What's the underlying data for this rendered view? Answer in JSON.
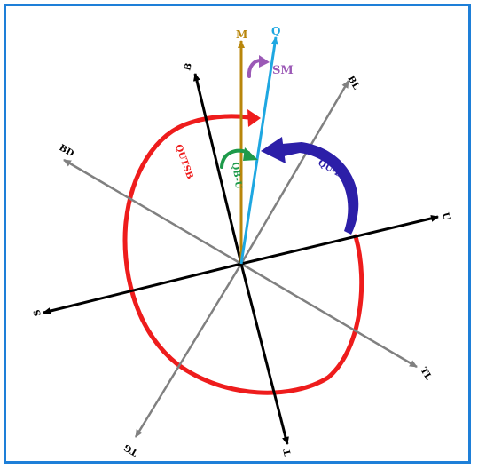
{
  "axes": [
    {
      "id": "M",
      "label": "M",
      "color": "#b8860b"
    },
    {
      "id": "Q",
      "label": "Q",
      "color": "#1ea7e1"
    },
    {
      "id": "B",
      "label": "B",
      "color": "#000000"
    },
    {
      "id": "BL",
      "label": "BL",
      "color": "#808080"
    },
    {
      "id": "BD",
      "label": "BD",
      "color": "#808080"
    },
    {
      "id": "U",
      "label": "U",
      "color": "#000000"
    },
    {
      "id": "S",
      "label": "S",
      "color": "#000000"
    },
    {
      "id": "TL",
      "label": "TL",
      "color": "#808080"
    },
    {
      "id": "TG",
      "label": "TG",
      "color": "#808080"
    },
    {
      "id": "T",
      "label": "T",
      "color": "#000000"
    }
  ],
  "rotations": [
    {
      "id": "SM",
      "label": "SM",
      "color": "#9b59b6"
    },
    {
      "id": "QU-B",
      "label": "QU-B",
      "color": "#2c1fa8"
    },
    {
      "id": "QB-U",
      "label": "QB-U",
      "color": "#1e9a4a"
    },
    {
      "id": "QUTSB",
      "label": "QUTSB",
      "color": "#ee1c1c"
    }
  ]
}
